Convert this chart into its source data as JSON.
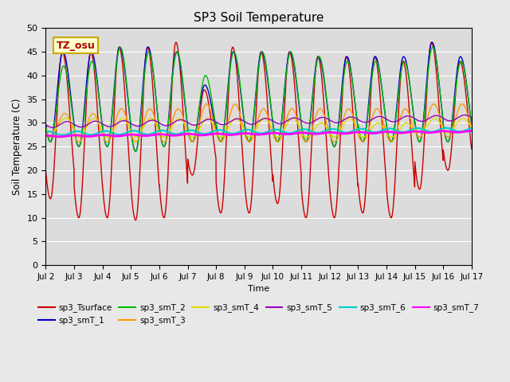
{
  "title": "SP3 Soil Temperature",
  "xlabel": "Time",
  "ylabel": "Soil Temperature (C)",
  "ylim": [
    0,
    50
  ],
  "annotation": "TZ_osu",
  "fig_facecolor": "#e8e8e8",
  "plot_facecolor": "#dcdcdc",
  "series_colors": {
    "sp3_Tsurface": "#cc0000",
    "sp3_smT_1": "#0000cc",
    "sp3_smT_2": "#00bb00",
    "sp3_smT_3": "#ff9900",
    "sp3_smT_4": "#dddd00",
    "sp3_smT_5": "#9900bb",
    "sp3_smT_6": "#00cccc",
    "sp3_smT_7": "#ff00ff"
  },
  "xtick_labels": [
    "Jul 2",
    "Jul 3",
    "Jul 4",
    "Jul 5",
    "Jul 6",
    "Jul 7",
    "Jul 8",
    "Jul 9",
    "Jul 10",
    "Jul 11",
    "Jul 12",
    "Jul 13",
    "Jul 14",
    "Jul 15",
    "Jul 16",
    "Jul 17"
  ],
  "n_days": 15,
  "surface_peaks": [
    45,
    45,
    46,
    46,
    47,
    37,
    46,
    45,
    45,
    44,
    44,
    44,
    43,
    47,
    43
  ],
  "surface_troughs": [
    14,
    10,
    10,
    9.5,
    10,
    19,
    11,
    11,
    13,
    10,
    10,
    11,
    10,
    16,
    20
  ],
  "smT1_peaks": [
    45,
    45,
    46,
    46,
    45,
    38,
    45,
    45,
    45,
    44,
    44,
    44,
    44,
    47,
    44
  ],
  "smT1_troughs": [
    26,
    25,
    25,
    24,
    25,
    26,
    26,
    26,
    26,
    26,
    25,
    26,
    26,
    26,
    26
  ],
  "smT2_peaks": [
    42,
    43,
    46,
    45,
    45,
    40,
    45,
    45,
    45,
    44,
    43,
    43,
    43,
    46,
    43
  ],
  "smT2_troughs": [
    26,
    25,
    25,
    24,
    25,
    26,
    26,
    26,
    26,
    26,
    25,
    26,
    26,
    26,
    26
  ],
  "smT3_peaks": [
    32,
    32,
    33,
    33,
    33,
    34,
    34,
    33,
    33,
    33,
    33,
    33,
    33,
    34,
    34
  ],
  "smT3_troughs": [
    27,
    26,
    26,
    26,
    26,
    26,
    26,
    26,
    26,
    26,
    26,
    26,
    26,
    27,
    27
  ],
  "smT4_peaks": [
    31,
    31,
    31,
    31,
    31,
    31,
    31,
    31,
    31,
    30,
    31,
    30,
    30,
    31,
    31
  ],
  "smT4_troughs": [
    28,
    27,
    27,
    27,
    27,
    27,
    27,
    27,
    27,
    27,
    27,
    27,
    27,
    28,
    28
  ],
  "smT5_base": 29.0,
  "smT5_amp": 1.2,
  "smT6_base": 27.8,
  "smT6_amp": 0.4,
  "smT7_base": 27.2,
  "smT7_amp": 0.15
}
